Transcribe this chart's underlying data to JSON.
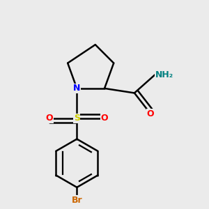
{
  "bg_color": "#ebebeb",
  "atom_colors": {
    "N": "#0000ff",
    "O": "#ff0000",
    "S": "#cccc00",
    "Br": "#cc6600",
    "C": "#000000",
    "H": "#008080"
  },
  "bond_color": "#000000",
  "bond_width": 1.8,
  "font_size_atom": 9
}
